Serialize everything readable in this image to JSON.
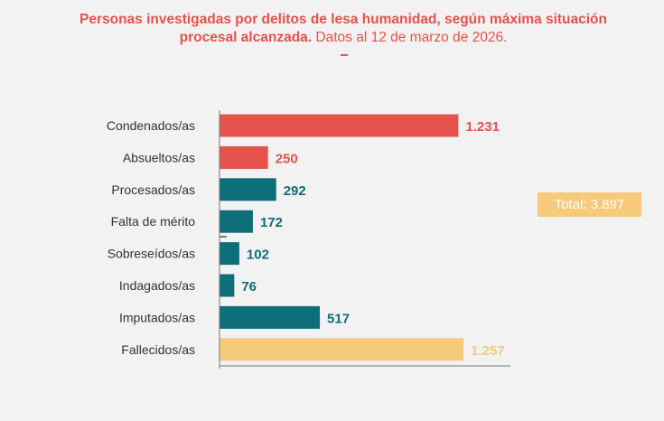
{
  "chart_data": {
    "type": "bar",
    "orientation": "horizontal",
    "title_bold": "Personas investigadas por delitos de lesa humanidad, según máxima situación procesal alcanzada.",
    "title_rest": " Datos al 12 de marzo de 2026.",
    "categories": [
      "Condenados/as",
      "Absueltos/as",
      "Procesados/as",
      "Falta de mérito",
      "Sobreseídos/as",
      "Indagados/as",
      "Imputados/as",
      "Fallecidos/as"
    ],
    "values": [
      1231,
      250,
      292,
      172,
      102,
      76,
      517,
      1257
    ],
    "value_labels": [
      "1.231",
      "250",
      "292",
      "172",
      "102",
      "76",
      "517",
      "1.257"
    ],
    "colors": [
      "#e5534b",
      "#e5534b",
      "#0e6e7a",
      "#0e6e7a",
      "#0e6e7a",
      "#0e6e7a",
      "#0e6e7a",
      "#f7c97a"
    ],
    "xlim": [
      0,
      1257
    ],
    "grid": false,
    "annotation": "Total: 3.897"
  }
}
